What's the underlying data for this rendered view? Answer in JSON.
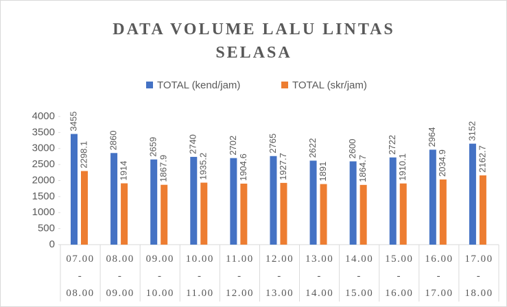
{
  "chart_data": {
    "type": "bar",
    "title": "DATA VOLUME LALU LINTAS SELASA",
    "categories": [
      "07.00 - 08.00",
      "08.00 - 09.00",
      "09.00 - 10.00",
      "10.00 - 11.00",
      "11.00 - 12.00",
      "12.00 - 13.00",
      "13.00 - 14.00",
      "14.00 - 15.00",
      "15.00 - 16.00",
      "16.00 - 17.00",
      "17.00 - 18.00"
    ],
    "series": [
      {
        "name": "TOTAL (kend/jam)",
        "color": "#4472c4",
        "values": [
          3455,
          2860,
          2659,
          2740,
          2702,
          2765,
          2622,
          2600,
          2722,
          2964,
          3152
        ]
      },
      {
        "name": "TOTAL (skr/jam)",
        "color": "#ed7d31",
        "values": [
          2298.1,
          1914,
          1867.9,
          1935.2,
          1904.6,
          1927.7,
          1891,
          1864.7,
          1910.1,
          2034.9,
          2162.7
        ]
      }
    ],
    "ylim": [
      0,
      4000
    ],
    "yticks": [
      0,
      500,
      1000,
      1500,
      2000,
      2500,
      3000,
      3500,
      4000
    ],
    "legend": "top"
  }
}
